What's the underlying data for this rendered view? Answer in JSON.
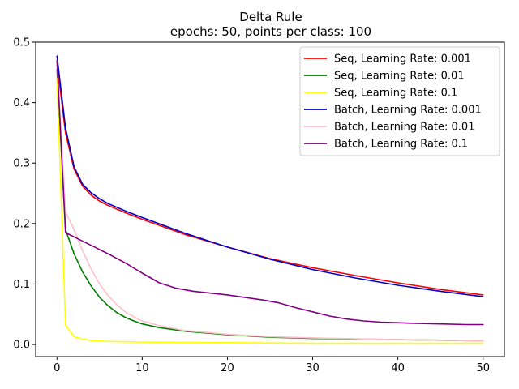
{
  "chart_data": {
    "type": "line",
    "title": "Delta Rule",
    "subtitle": "epochs: 50, points per class: 100",
    "xlabel": "",
    "ylabel": "",
    "xlim": [
      -2.5,
      52.5
    ],
    "ylim": [
      -0.02,
      0.5
    ],
    "xticks": [
      0,
      10,
      20,
      30,
      40,
      50
    ],
    "yticks": [
      0.0,
      0.1,
      0.2,
      0.3,
      0.4,
      0.5
    ],
    "xtick_labels": [
      "0",
      "10",
      "20",
      "30",
      "40",
      "50"
    ],
    "ytick_labels": [
      "0.0",
      "0.1",
      "0.2",
      "0.3",
      "0.4",
      "0.5"
    ],
    "legend_position": "top-right",
    "grid": false,
    "series": [
      {
        "name": "Seq, Learning Rate: 0.001",
        "color": "#ff0000",
        "x": [
          0,
          1,
          2,
          3,
          4,
          5,
          6,
          8,
          10,
          15,
          20,
          25,
          30,
          35,
          40,
          45,
          50
        ],
        "y": [
          0.465,
          0.35,
          0.29,
          0.262,
          0.247,
          0.237,
          0.23,
          0.218,
          0.207,
          0.182,
          0.161,
          0.142,
          0.127,
          0.114,
          0.102,
          0.091,
          0.082
        ]
      },
      {
        "name": "Seq, Learning Rate: 0.01",
        "color": "#008000",
        "x": [
          0,
          1,
          2,
          3,
          4,
          5,
          6,
          7,
          8,
          9,
          10,
          12,
          15,
          20,
          25,
          30,
          40,
          50
        ],
        "y": [
          0.455,
          0.19,
          0.15,
          0.12,
          0.097,
          0.078,
          0.064,
          0.053,
          0.045,
          0.039,
          0.034,
          0.028,
          0.022,
          0.016,
          0.012,
          0.01,
          0.008,
          0.006
        ]
      },
      {
        "name": "Seq, Learning Rate: 0.1",
        "color": "#ffff00",
        "x": [
          0,
          1,
          2,
          3,
          4,
          6,
          10,
          20,
          30,
          40,
          50
        ],
        "y": [
          0.44,
          0.032,
          0.013,
          0.009,
          0.007,
          0.005,
          0.004,
          0.003,
          0.002,
          0.002,
          0.002
        ]
      },
      {
        "name": "Batch, Learning Rate: 0.001",
        "color": "#0000cd",
        "x": [
          0,
          1,
          2,
          3,
          4,
          5,
          6,
          8,
          10,
          15,
          20,
          25,
          30,
          35,
          40,
          45,
          50
        ],
        "y": [
          0.477,
          0.358,
          0.294,
          0.265,
          0.251,
          0.241,
          0.233,
          0.221,
          0.21,
          0.184,
          0.161,
          0.141,
          0.124,
          0.11,
          0.098,
          0.088,
          0.079
        ]
      },
      {
        "name": "Batch, Learning Rate: 0.01",
        "color": "#ffc0cb",
        "x": [
          0,
          1,
          2,
          3,
          4,
          5,
          6,
          7,
          8,
          9,
          10,
          12,
          15,
          20,
          25,
          30,
          40,
          50
        ],
        "y": [
          0.465,
          0.22,
          0.19,
          0.155,
          0.125,
          0.1,
          0.081,
          0.066,
          0.054,
          0.046,
          0.039,
          0.031,
          0.023,
          0.017,
          0.013,
          0.011,
          0.008,
          0.006
        ]
      },
      {
        "name": "Batch, Learning Rate: 0.1",
        "color": "#800080",
        "x": [
          0,
          1,
          2,
          4,
          6,
          8,
          10,
          12,
          14,
          16,
          18,
          20,
          22,
          24,
          26,
          28,
          30,
          32,
          34,
          36,
          38,
          40,
          42,
          45,
          48,
          50
        ],
        "y": [
          0.47,
          0.185,
          0.178,
          0.164,
          0.15,
          0.135,
          0.118,
          0.102,
          0.093,
          0.088,
          0.085,
          0.082,
          0.078,
          0.074,
          0.069,
          0.061,
          0.054,
          0.047,
          0.042,
          0.039,
          0.037,
          0.036,
          0.035,
          0.034,
          0.033,
          0.033
        ]
      }
    ]
  }
}
